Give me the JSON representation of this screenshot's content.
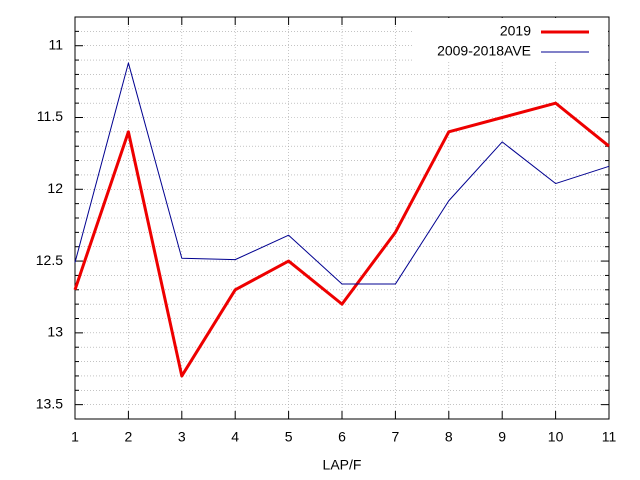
{
  "chart_data": {
    "type": "line",
    "xlabel": "LAP/F",
    "x": [
      1,
      2,
      3,
      4,
      5,
      6,
      7,
      8,
      9,
      10,
      11
    ],
    "series": [
      {
        "name": "2019",
        "color": "#ee0000",
        "width": 3,
        "values": [
          12.7,
          11.6,
          13.3,
          12.7,
          12.5,
          12.8,
          12.3,
          11.6,
          11.5,
          11.4,
          11.7
        ]
      },
      {
        "name": "2009-2018AVE",
        "color": "#000090",
        "width": 1,
        "values": [
          12.51,
          11.12,
          12.48,
          12.49,
          12.32,
          12.66,
          12.66,
          12.08,
          11.67,
          11.96,
          11.84
        ]
      }
    ],
    "xlim": [
      1,
      11
    ],
    "xticks": [
      1,
      2,
      3,
      4,
      5,
      6,
      7,
      8,
      9,
      10,
      11
    ],
    "ylim": [
      10.8,
      13.6
    ],
    "y_reversed": true,
    "yticks": [
      11,
      11.5,
      12,
      12.5,
      13,
      13.5
    ],
    "yminorticks": [
      10.9,
      11.1,
      11.2,
      11.3,
      11.4,
      11.6,
      11.7,
      11.8,
      11.9,
      12.1,
      12.2,
      12.3,
      12.4,
      12.6,
      12.7,
      12.8,
      12.9,
      13.1,
      13.2,
      13.3,
      13.4
    ],
    "grid": true,
    "legend": "top-right"
  }
}
